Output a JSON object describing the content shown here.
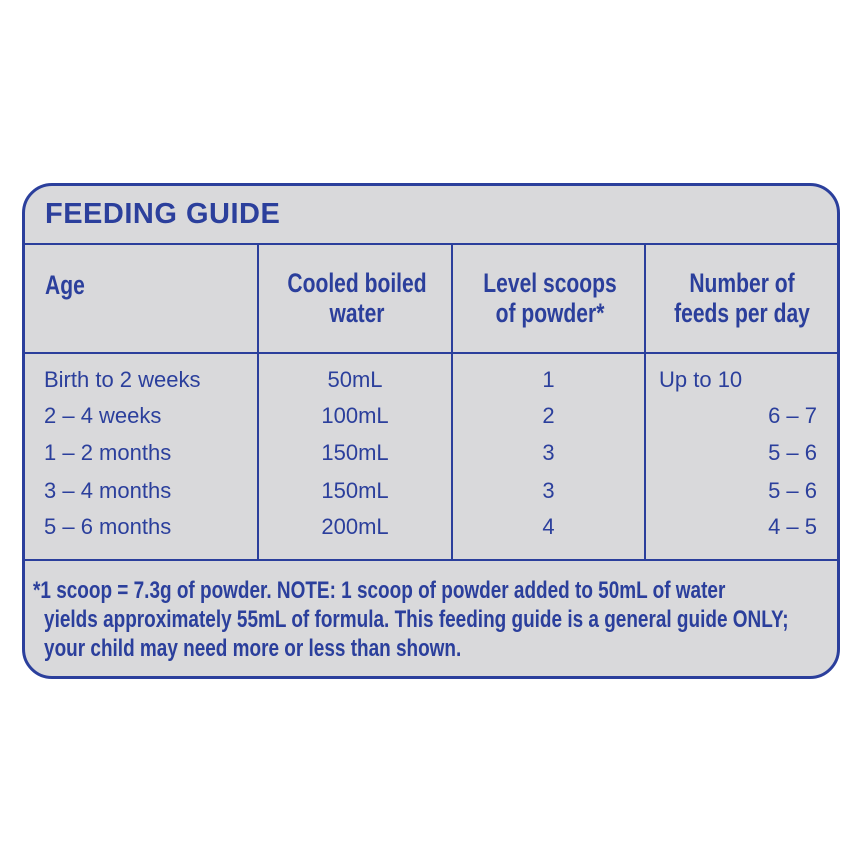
{
  "title": "FEEDING GUIDE",
  "headers": [
    "Age",
    "Cooled boiled water",
    "Level scoops of powder*",
    "Number of feeds per day"
  ],
  "header_lines": [
    [
      "Age"
    ],
    [
      "Cooled boiled",
      "water"
    ],
    [
      "Level scoops",
      "of powder*"
    ],
    [
      "Number of",
      "feeds per day"
    ]
  ],
  "rows": [
    [
      "Birth to 2 weeks",
      "50mL",
      "1",
      "Up to 10"
    ],
    [
      "2 – 4 weeks",
      "100mL",
      "2",
      "6 – 7"
    ],
    [
      "1 – 2 months",
      "150mL",
      "3",
      "5 – 6"
    ],
    [
      "3 – 4 months",
      "150mL",
      "3",
      "5 – 6"
    ],
    [
      "5 – 6 months",
      "200mL",
      "4",
      "4 – 5"
    ]
  ],
  "footnote_lines": [
    "*1 scoop = 7.3g of powder. NOTE: 1 scoop of powder added to 50mL of water",
    "yields approximately 55mL of formula. This feeding guide is a general guide ONLY;",
    "your child may need more or less than shown."
  ],
  "colors": {
    "accent": "#2b3f9c",
    "background": "#d9d9db"
  }
}
